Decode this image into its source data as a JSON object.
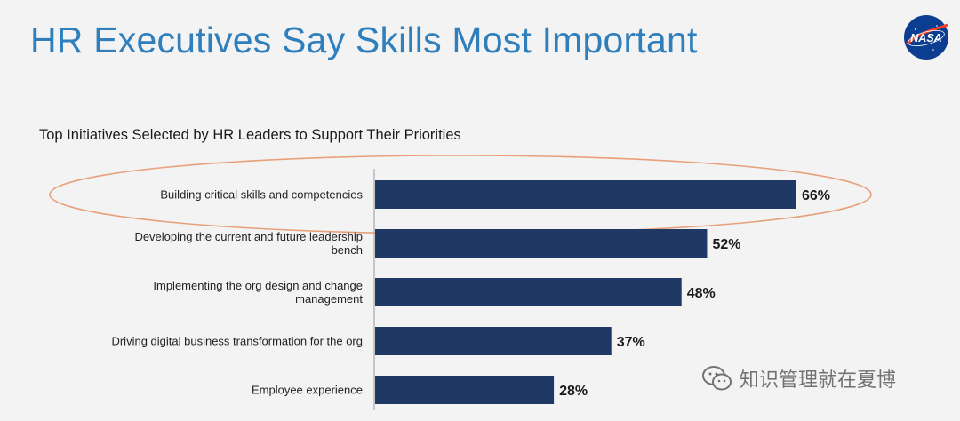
{
  "slide": {
    "title": "HR Executives Say Skills Most Important",
    "logo_text": "NASA"
  },
  "watermark": {
    "text": "知识管理就在夏博",
    "icon": "wechat-icon"
  },
  "colors": {
    "bar": "#1f3864",
    "title": "#2f7fbd",
    "highlight_ellipse": "#e8a07a",
    "background": "#f3f3f3"
  },
  "chart_data": {
    "type": "bar",
    "orientation": "horizontal",
    "title": "Top Initiatives Selected by HR Leaders to Support Their Priorities",
    "categories": [
      [
        "Building  critical skills and competencies"
      ],
      [
        "Developing the current and future leadership",
        "bench"
      ],
      [
        "Implementing the org design and change",
        "management"
      ],
      [
        "Driving digital business transformation for the org"
      ],
      [
        "Employee experience"
      ]
    ],
    "values": [
      66,
      52,
      48,
      37,
      28
    ],
    "value_labels": [
      "66%",
      "52%",
      "48%",
      "37%",
      "28%"
    ],
    "unit": "%",
    "highlighted_index": 0,
    "xlim": [
      0,
      100
    ],
    "grid": false,
    "legend": "none"
  }
}
